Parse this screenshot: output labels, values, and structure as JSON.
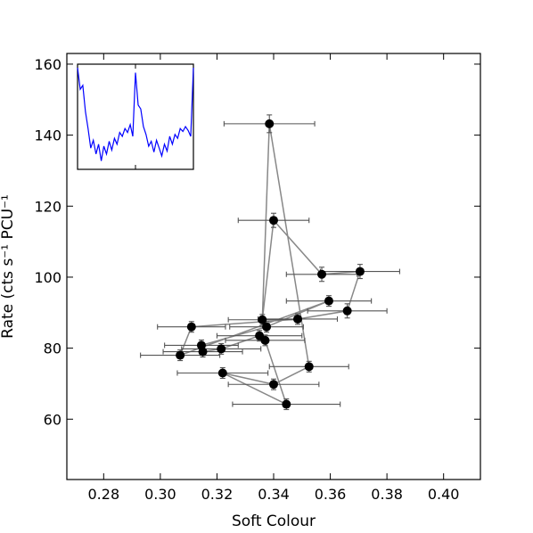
{
  "chart_data": {
    "type": "scatter",
    "xlabel": "Soft Colour",
    "ylabel": "Rate (cts s⁻¹ PCU⁻¹",
    "xlim": [
      0.267,
      0.413
    ],
    "ylim": [
      43,
      163
    ],
    "xticks": [
      0.28,
      0.3,
      0.32,
      0.34,
      0.36,
      0.38,
      0.4
    ],
    "xtick_labels": [
      "0.28",
      "0.30",
      "0.32",
      "0.34",
      "0.36",
      "0.38",
      "0.40"
    ],
    "yticks": [
      60,
      80,
      100,
      120,
      140,
      160
    ],
    "ytick_labels": [
      "60",
      "80",
      "100",
      "120",
      "140",
      "160"
    ],
    "grid": false,
    "colors": {
      "points": "#000000",
      "path": "#888888",
      "errorbars": "#555555",
      "inset_line": "#0000ff"
    },
    "points": [
      {
        "x": 0.3385,
        "y": 143.2,
        "xerr": 0.016,
        "yerr": 2.5
      },
      {
        "x": 0.34,
        "y": 116.0,
        "xerr": 0.0125,
        "yerr": 2.0
      },
      {
        "x": 0.357,
        "y": 100.8,
        "xerr": 0.0125,
        "yerr": 2.0
      },
      {
        "x": 0.3705,
        "y": 101.6,
        "xerr": 0.014,
        "yerr": 2.0
      },
      {
        "x": 0.366,
        "y": 90.5,
        "xerr": 0.014,
        "yerr": 2.0
      },
      {
        "x": 0.3595,
        "y": 93.3,
        "xerr": 0.015,
        "yerr": 1.5
      },
      {
        "x": 0.3485,
        "y": 88.2,
        "xerr": 0.014,
        "yerr": 1.5
      },
      {
        "x": 0.336,
        "y": 88.0,
        "xerr": 0.012,
        "yerr": 1.5
      },
      {
        "x": 0.3375,
        "y": 86.0,
        "xerr": 0.013,
        "yerr": 1.5
      },
      {
        "x": 0.311,
        "y": 86.0,
        "xerr": 0.012,
        "yerr": 1.5
      },
      {
        "x": 0.307,
        "y": 78.0,
        "xerr": 0.014,
        "yerr": 1.5
      },
      {
        "x": 0.3145,
        "y": 80.8,
        "xerr": 0.013,
        "yerr": 1.5
      },
      {
        "x": 0.315,
        "y": 79.0,
        "xerr": 0.014,
        "yerr": 1.5
      },
      {
        "x": 0.3215,
        "y": 79.8,
        "xerr": 0.014,
        "yerr": 1.5
      },
      {
        "x": 0.335,
        "y": 83.5,
        "xerr": 0.015,
        "yerr": 1.5
      },
      {
        "x": 0.337,
        "y": 82.2,
        "xerr": 0.014,
        "yerr": 1.5
      },
      {
        "x": 0.322,
        "y": 73.0,
        "xerr": 0.016,
        "yerr": 1.5
      },
      {
        "x": 0.34,
        "y": 69.8,
        "xerr": 0.016,
        "yerr": 1.5
      },
      {
        "x": 0.3525,
        "y": 74.8,
        "xerr": 0.014,
        "yerr": 1.5
      },
      {
        "x": 0.3445,
        "y": 64.2,
        "xerr": 0.019,
        "yerr": 1.5
      }
    ],
    "path_order": [
      0,
      7,
      1,
      2,
      3,
      4,
      6,
      9,
      10,
      5,
      8,
      11,
      12,
      13,
      14,
      15,
      19,
      16,
      17,
      18,
      0
    ],
    "inset": {
      "series": [
        1.0,
        0.78,
        0.82,
        0.55,
        0.38,
        0.18,
        0.26,
        0.12,
        0.22,
        0.05,
        0.2,
        0.12,
        0.25,
        0.16,
        0.28,
        0.22,
        0.34,
        0.3,
        0.38,
        0.34,
        0.42,
        0.3,
        0.95,
        0.62,
        0.58,
        0.4,
        0.32,
        0.2,
        0.25,
        0.14,
        0.26,
        0.18,
        0.1,
        0.22,
        0.15,
        0.3,
        0.22,
        0.32,
        0.28,
        0.38,
        0.35,
        0.4,
        0.36,
        0.3,
        1.0
      ]
    }
  }
}
